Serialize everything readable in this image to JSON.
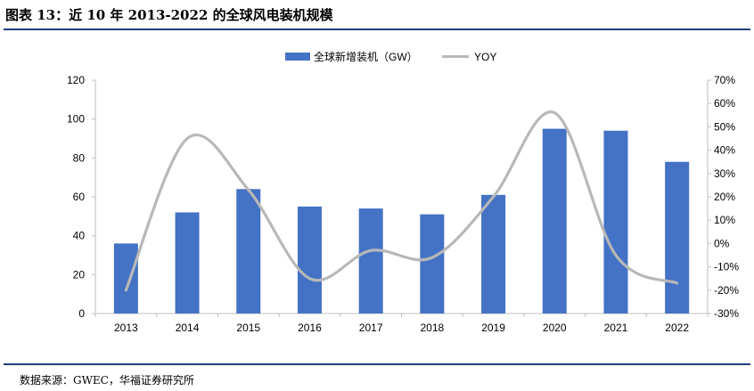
{
  "figure": {
    "title": "图表 13：近 10 年 2013-2022 的全球风电装机规模",
    "source": "数据来源：GWEC，华福证券研究所"
  },
  "colors": {
    "bar": "#4472c4",
    "line": "#b8b8b8",
    "rule": "#1f3f7a",
    "axis": "#bfbfbf"
  },
  "chart_data": {
    "type": "bar",
    "title": "",
    "categories": [
      "2013",
      "2014",
      "2015",
      "2016",
      "2017",
      "2018",
      "2019",
      "2020",
      "2021",
      "2022"
    ],
    "series": [
      {
        "name": "全球新增装机（GW）",
        "type": "bar",
        "axis": "left",
        "values": [
          36,
          52,
          64,
          55,
          54,
          51,
          61,
          95,
          94,
          78
        ]
      },
      {
        "name": "YOY",
        "type": "line",
        "axis": "right",
        "smooth": true,
        "values": [
          -0.2,
          0.45,
          0.23,
          -0.15,
          -0.03,
          -0.06,
          0.2,
          0.56,
          -0.05,
          -0.17
        ]
      }
    ],
    "y_left": {
      "min": 0,
      "max": 120,
      "ticks": [
        0,
        20,
        40,
        60,
        80,
        100,
        120
      ]
    },
    "y_right": {
      "min": -0.3,
      "max": 0.7,
      "ticks": [
        "-30%",
        "-20%",
        "-10%",
        "0%",
        "10%",
        "20%",
        "30%",
        "40%",
        "50%",
        "60%",
        "70%"
      ]
    },
    "legend": {
      "position": "top"
    },
    "grid": false
  }
}
